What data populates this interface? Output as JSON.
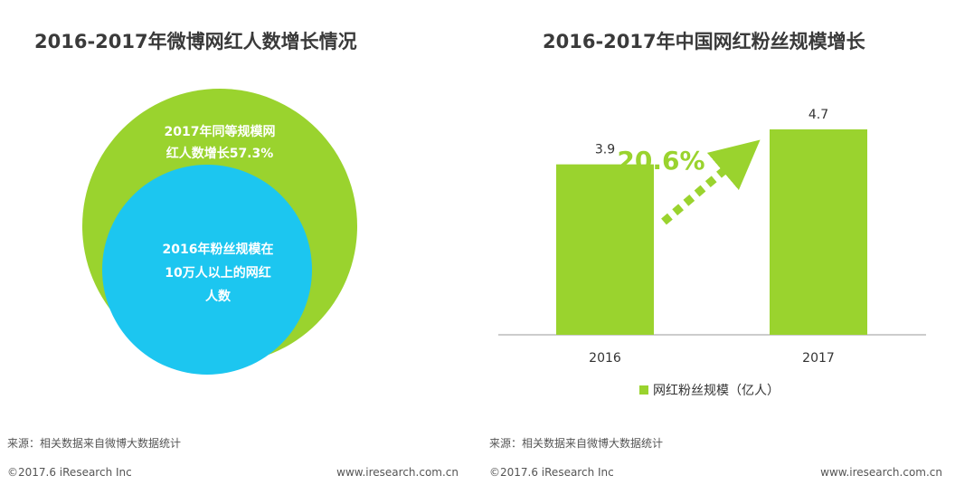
{
  "left_panel": {
    "title": "2016-2017年微博网红人数增长情况",
    "outer_circle_label_lines": [
      "2017年同等规模网",
      "红人数增长57.3%"
    ],
    "inner_circle_label_lines": [
      "2016年粉丝规模在",
      "10万人以上的网红",
      "人数"
    ],
    "source": "来源：相关数据来自微博大数据统计",
    "copyright": "©2017.6 iResearch Inc",
    "url": "www.iresearch.com.cn"
  },
  "right_panel": {
    "title": "2016-2017年中国网红粉丝规模增长",
    "source": "来源：相关数据来自微博大数据统计",
    "copyright": "©2017.6 iResearch Inc",
    "url": "www.iresearch.com.cn"
  },
  "colors": {
    "green": "#9ad32e",
    "cyan": "#1cc6f0",
    "axis": "#999999"
  },
  "chart_data": [
    {
      "type": "venn",
      "title": "2016-2017年微博网红人数增长情况",
      "sets": [
        {
          "label": "2017年同等规模网红人数增长57.3%",
          "relative_size": 1.573
        },
        {
          "label": "2016年粉丝规模在10万人以上的网红人数",
          "relative_size": 1.0
        }
      ]
    },
    {
      "type": "bar",
      "title": "2016-2017年中国网红粉丝规模增长",
      "categories": [
        "2016",
        "2017"
      ],
      "values": [
        3.9,
        4.7
      ],
      "value_labels": [
        "3.9",
        "4.7"
      ],
      "series_name": "网红粉丝规模（亿人）",
      "growth_label": "20.6%",
      "ylim": [
        0,
        5
      ]
    }
  ]
}
